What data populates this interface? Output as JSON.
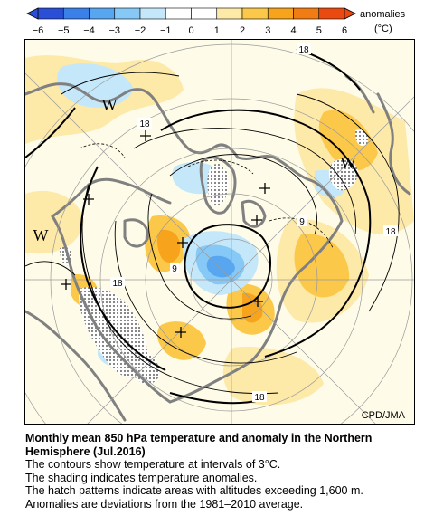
{
  "colorbar": {
    "tick_labels": [
      "−6",
      "−5",
      "−4",
      "−3",
      "−2",
      "−1",
      "0",
      "1",
      "2",
      "3",
      "4",
      "5",
      "6"
    ],
    "label_line1": "anomalies",
    "label_line2": "(°C)",
    "colors": [
      "#2a4fd6",
      "#3b7fe8",
      "#58a6f0",
      "#86c8f6",
      "#c4e8fa",
      "#ffffff",
      "#ffffff",
      "#fde9a8",
      "#fbc84a",
      "#f7a41c",
      "#f27c14",
      "#ea4a12"
    ]
  },
  "map": {
    "contour_labels": [
      "18",
      "18",
      "9",
      "18",
      "9",
      "18",
      "18"
    ],
    "high_low_labels": [
      "W",
      "W",
      "W"
    ],
    "credit": "CPD/JMA"
  },
  "caption": {
    "title_line1": "Monthly mean 850 hPa temperature and anomaly in the Northern",
    "title_line2": "Hemisphere (Jul.2016)",
    "line1": "The contours show temperature at intervals of 3°C.",
    "line2": "The shading indicates temperature anomalies.",
    "line3": "The hatch patterns indicate areas with altitudes exceeding 1,600 m.",
    "line4": "Anomalies are deviations from the 1981–2010 average."
  }
}
